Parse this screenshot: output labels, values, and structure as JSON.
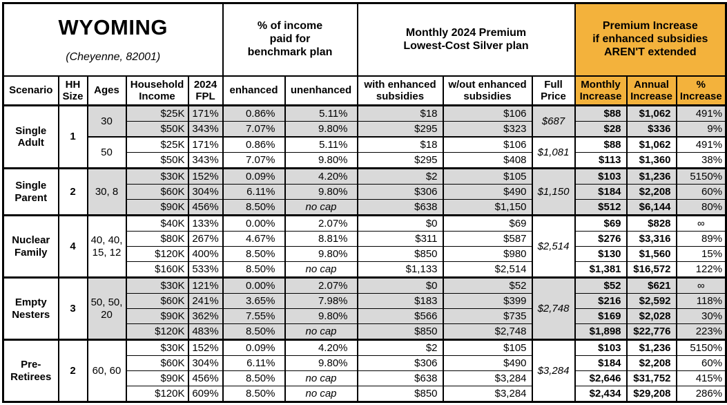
{
  "title": "WYOMING",
  "subtitle": "(Cheyenne, 82001)",
  "colors": {
    "highlight_orange": "#F3B23C",
    "row_shade_gray": "#D9D9D9",
    "border": "#000000"
  },
  "header_groups": {
    "income_pct": "% of income\npaid for\nbenchmark plan",
    "premium": "Monthly 2024 Premium\nLowest-Cost Silver plan",
    "increase": "Premium Increase\nif enhanced subsidies\nAREN'T extended"
  },
  "columns": [
    "Scenario",
    "HH\nSize",
    "Ages",
    "Household\nIncome",
    "2024\nFPL",
    "enhanced",
    "unenhanced",
    "with enhanced\nsubsidies",
    "w/out enhanced\nsubsidies",
    "Full\nPrice",
    "Monthly\nIncrease",
    "Annual\nIncrease",
    "%\nIncrease"
  ],
  "groups": [
    {
      "scenario": "Single\nAdult",
      "hh_size": "1",
      "age_blocks": [
        {
          "ages": "30",
          "shaded": true,
          "full_price": "$687",
          "rows": [
            {
              "income": "$25K",
              "fpl": "171%",
              "enhanced": "0.86%",
              "unenhanced": "5.11%",
              "with_sub": "$18",
              "without_sub": "$106",
              "monthly": "$88",
              "annual": "$1,062",
              "pct": "491%"
            },
            {
              "income": "$50K",
              "fpl": "343%",
              "enhanced": "7.07%",
              "unenhanced": "9.80%",
              "with_sub": "$295",
              "without_sub": "$323",
              "monthly": "$28",
              "annual": "$336",
              "pct": "9%"
            }
          ]
        },
        {
          "ages": "50",
          "shaded": false,
          "full_price": "$1,081",
          "rows": [
            {
              "income": "$25K",
              "fpl": "171%",
              "enhanced": "0.86%",
              "unenhanced": "5.11%",
              "with_sub": "$18",
              "without_sub": "$106",
              "monthly": "$88",
              "annual": "$1,062",
              "pct": "491%"
            },
            {
              "income": "$50K",
              "fpl": "343%",
              "enhanced": "7.07%",
              "unenhanced": "9.80%",
              "with_sub": "$295",
              "without_sub": "$408",
              "monthly": "$113",
              "annual": "$1,360",
              "pct": "38%"
            }
          ]
        }
      ]
    },
    {
      "scenario": "Single\nParent",
      "hh_size": "2",
      "age_blocks": [
        {
          "ages": "30, 8",
          "shaded": true,
          "full_price": "$1,150",
          "rows": [
            {
              "income": "$30K",
              "fpl": "152%",
              "enhanced": "0.09%",
              "unenhanced": "4.20%",
              "with_sub": "$2",
              "without_sub": "$105",
              "monthly": "$103",
              "annual": "$1,236",
              "pct": "5150%"
            },
            {
              "income": "$60K",
              "fpl": "304%",
              "enhanced": "6.11%",
              "unenhanced": "9.80%",
              "with_sub": "$306",
              "without_sub": "$490",
              "monthly": "$184",
              "annual": "$2,208",
              "pct": "60%"
            },
            {
              "income": "$90K",
              "fpl": "456%",
              "enhanced": "8.50%",
              "unenhanced": "no cap",
              "with_sub": "$638",
              "without_sub": "$1,150",
              "monthly": "$512",
              "annual": "$6,144",
              "pct": "80%"
            }
          ]
        }
      ]
    },
    {
      "scenario": "Nuclear\nFamily",
      "hh_size": "4",
      "age_blocks": [
        {
          "ages": "40, 40,\n15, 12",
          "shaded": false,
          "full_price": "$2,514",
          "rows": [
            {
              "income": "$40K",
              "fpl": "133%",
              "enhanced": "0.00%",
              "unenhanced": "2.07%",
              "with_sub": "$0",
              "without_sub": "$69",
              "monthly": "$69",
              "annual": "$828",
              "pct": "∞"
            },
            {
              "income": "$80K",
              "fpl": "267%",
              "enhanced": "4.67%",
              "unenhanced": "8.81%",
              "with_sub": "$311",
              "without_sub": "$587",
              "monthly": "$276",
              "annual": "$3,316",
              "pct": "89%"
            },
            {
              "income": "$120K",
              "fpl": "400%",
              "enhanced": "8.50%",
              "unenhanced": "9.80%",
              "with_sub": "$850",
              "without_sub": "$980",
              "monthly": "$130",
              "annual": "$1,560",
              "pct": "15%"
            },
            {
              "income": "$160K",
              "fpl": "533%",
              "enhanced": "8.50%",
              "unenhanced": "no cap",
              "with_sub": "$1,133",
              "without_sub": "$2,514",
              "monthly": "$1,381",
              "annual": "$16,572",
              "pct": "122%"
            }
          ]
        }
      ]
    },
    {
      "scenario": "Empty\nNesters",
      "hh_size": "3",
      "age_blocks": [
        {
          "ages": "50, 50,\n20",
          "shaded": true,
          "full_price": "$2,748",
          "rows": [
            {
              "income": "$30K",
              "fpl": "121%",
              "enhanced": "0.00%",
              "unenhanced": "2.07%",
              "with_sub": "$0",
              "without_sub": "$52",
              "monthly": "$52",
              "annual": "$621",
              "pct": "∞"
            },
            {
              "income": "$60K",
              "fpl": "241%",
              "enhanced": "3.65%",
              "unenhanced": "7.98%",
              "with_sub": "$183",
              "without_sub": "$399",
              "monthly": "$216",
              "annual": "$2,592",
              "pct": "118%"
            },
            {
              "income": "$90K",
              "fpl": "362%",
              "enhanced": "7.55%",
              "unenhanced": "9.80%",
              "with_sub": "$566",
              "without_sub": "$735",
              "monthly": "$169",
              "annual": "$2,028",
              "pct": "30%"
            },
            {
              "income": "$120K",
              "fpl": "483%",
              "enhanced": "8.50%",
              "unenhanced": "no cap",
              "with_sub": "$850",
              "without_sub": "$2,748",
              "monthly": "$1,898",
              "annual": "$22,776",
              "pct": "223%"
            }
          ]
        }
      ]
    },
    {
      "scenario": "Pre-\nRetirees",
      "hh_size": "2",
      "age_blocks": [
        {
          "ages": "60, 60",
          "shaded": false,
          "full_price": "$3,284",
          "rows": [
            {
              "income": "$30K",
              "fpl": "152%",
              "enhanced": "0.09%",
              "unenhanced": "4.20%",
              "with_sub": "$2",
              "without_sub": "$105",
              "monthly": "$103",
              "annual": "$1,236",
              "pct": "5150%"
            },
            {
              "income": "$60K",
              "fpl": "304%",
              "enhanced": "6.11%",
              "unenhanced": "9.80%",
              "with_sub": "$306",
              "without_sub": "$490",
              "monthly": "$184",
              "annual": "$2,208",
              "pct": "60%"
            },
            {
              "income": "$90K",
              "fpl": "456%",
              "enhanced": "8.50%",
              "unenhanced": "no cap",
              "with_sub": "$638",
              "without_sub": "$3,284",
              "monthly": "$2,646",
              "annual": "$31,752",
              "pct": "415%"
            },
            {
              "income": "$120K",
              "fpl": "609%",
              "enhanced": "8.50%",
              "unenhanced": "no cap",
              "with_sub": "$850",
              "without_sub": "$3,284",
              "monthly": "$2,434",
              "annual": "$29,208",
              "pct": "286%"
            }
          ]
        }
      ]
    }
  ]
}
